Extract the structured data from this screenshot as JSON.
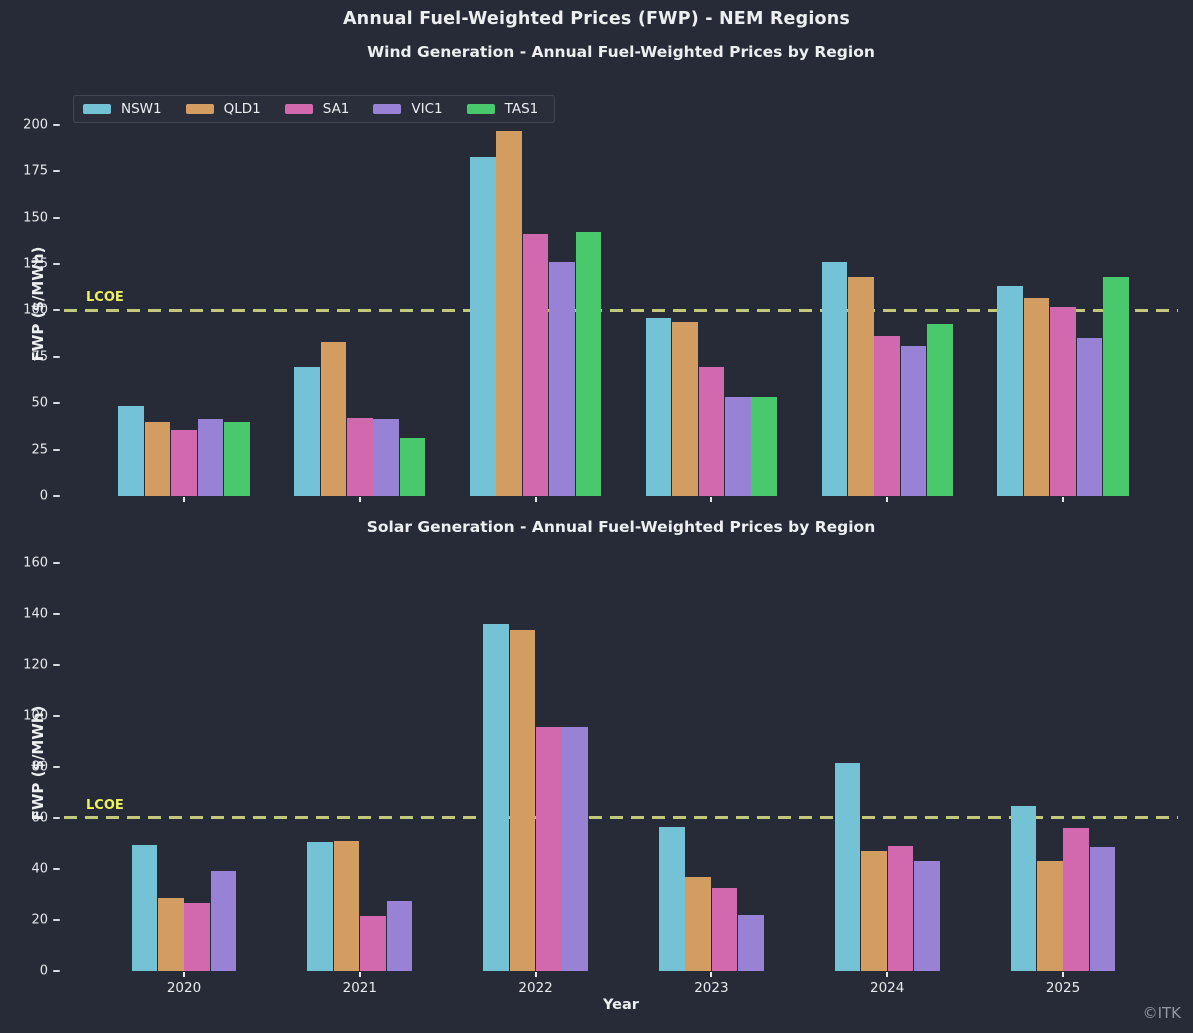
{
  "figure": {
    "title": "Annual Fuel-Weighted Prices (FWP) - NEM Regions",
    "watermark": "©ITK",
    "background_color": "#272b37",
    "text_color": "#edeef0"
  },
  "chart_data": [
    {
      "type": "bar",
      "title": "Wind Generation - Annual Fuel-Weighted Prices by Region",
      "ylabel": "FWP ($/MWh)",
      "xlabel": "",
      "categories": [
        "2020",
        "2021",
        "2022",
        "2023",
        "2024",
        "2025"
      ],
      "series": [
        {
          "name": "NSW1",
          "color": "#74c2d6",
          "values": [
            48.5,
            69.5,
            182.5,
            96,
            126,
            113
          ]
        },
        {
          "name": "QLD1",
          "color": "#d39d62",
          "values": [
            40,
            83,
            197,
            94,
            118,
            106.5
          ]
        },
        {
          "name": "SA1",
          "color": "#d268ae",
          "values": [
            35.5,
            42,
            141.5,
            69.5,
            86,
            102
          ]
        },
        {
          "name": "VIC1",
          "color": "#9782d6",
          "values": [
            41.5,
            41.5,
            126,
            53.5,
            81,
            85
          ]
        },
        {
          "name": "TAS1",
          "color": "#48ca6c",
          "values": [
            40,
            31.5,
            142.5,
            53.5,
            92.5,
            118
          ]
        }
      ],
      "yticks": [
        0,
        25,
        50,
        75,
        100,
        125,
        150,
        175,
        200
      ],
      "ylim": [
        0,
        207
      ],
      "ref_line": {
        "label": "LCOE",
        "value": 100,
        "line_color": "#c3c97a",
        "label_color": "#eef25e",
        "style": "dashed"
      },
      "legend_position": "upper left",
      "show_x_tick_labels": false,
      "grid": false
    },
    {
      "type": "bar",
      "title": "Solar Generation - Annual Fuel-Weighted Prices by Region",
      "ylabel": "FWP ($/MWh)",
      "xlabel": "Year",
      "categories": [
        "2020",
        "2021",
        "2022",
        "2023",
        "2024",
        "2025"
      ],
      "series": [
        {
          "name": "NSW1",
          "color": "#74c2d6",
          "values": [
            49.5,
            50.5,
            136,
            56.5,
            81.5,
            64.5
          ]
        },
        {
          "name": "QLD1",
          "color": "#d39d62",
          "values": [
            28.5,
            51,
            133.5,
            37,
            47,
            43
          ]
        },
        {
          "name": "SA1",
          "color": "#d268ae",
          "values": [
            26.5,
            21.5,
            95.5,
            32.5,
            49,
            56
          ]
        },
        {
          "name": "VIC1",
          "color": "#9782d6",
          "values": [
            39,
            27.5,
            95.5,
            22,
            43,
            48.5
          ]
        }
      ],
      "yticks": [
        0,
        20,
        40,
        60,
        80,
        100,
        120,
        140,
        160
      ],
      "ylim": [
        0,
        163
      ],
      "ref_line": {
        "label": "LCOE",
        "value": 60,
        "line_color": "#c3c97a",
        "label_color": "#eef25e",
        "style": "dashed"
      },
      "legend_position": "none",
      "show_x_tick_labels": true,
      "grid": false
    }
  ],
  "legend": {
    "entries": [
      "NSW1",
      "QLD1",
      "SA1",
      "VIC1",
      "TAS1"
    ]
  }
}
